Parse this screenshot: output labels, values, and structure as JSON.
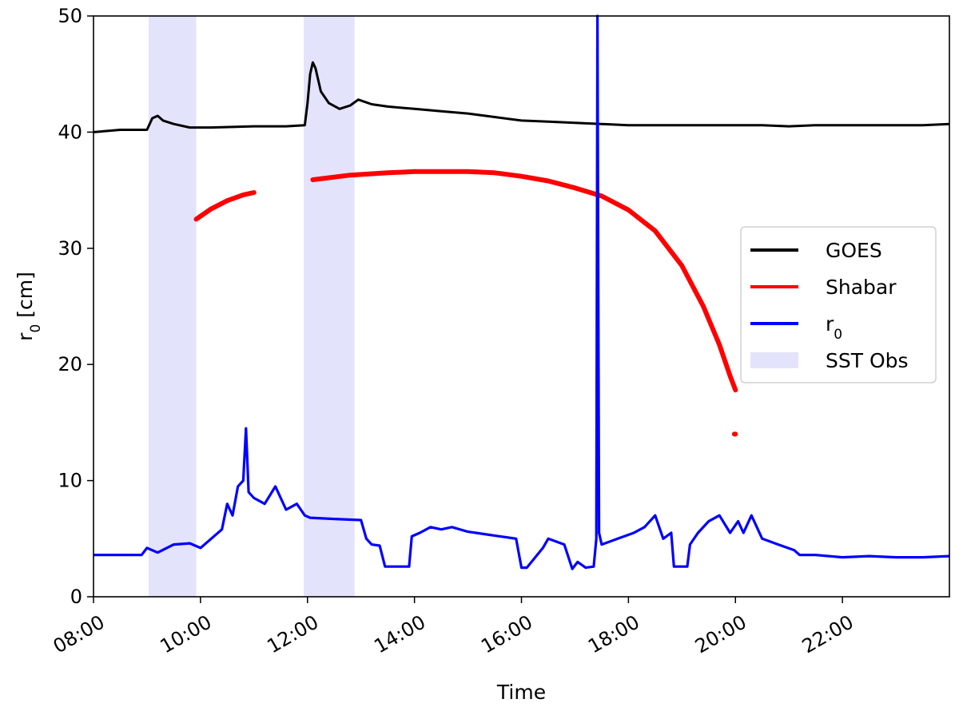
{
  "chart_data": {
    "type": "line",
    "xlabel": "Time",
    "ylabel": "r",
    "ylabel_sub": "0",
    "ylabel_unit": " [cm]",
    "xlim": [
      8.0,
      24.0
    ],
    "ylim": [
      0,
      50
    ],
    "xticks": [
      {
        "value": 8,
        "label": "08:00"
      },
      {
        "value": 10,
        "label": "10:00"
      },
      {
        "value": 12,
        "label": "12:00"
      },
      {
        "value": 14,
        "label": "14:00"
      },
      {
        "value": 16,
        "label": "16:00"
      },
      {
        "value": 18,
        "label": "18:00"
      },
      {
        "value": 20,
        "label": "20:00"
      },
      {
        "value": 22,
        "label": "22:00"
      }
    ],
    "yticks": [
      0,
      10,
      20,
      30,
      40,
      50
    ],
    "grid": false,
    "legend": {
      "position": "center-right",
      "entries": [
        {
          "label": "GOES",
          "sub": "",
          "color": "#000000",
          "type": "line"
        },
        {
          "label": "Shabar",
          "sub": "",
          "color": "#ff0000",
          "type": "line"
        },
        {
          "label": "r",
          "sub": "0",
          "color": "#0000ff",
          "type": "line"
        },
        {
          "label": "SST Obs",
          "sub": "",
          "color": "#e3e3fb",
          "type": "patch"
        }
      ]
    },
    "shaded_regions": [
      {
        "name": "SST Obs",
        "x": [
          9.03,
          9.92
        ],
        "color": "#e3e3fb"
      },
      {
        "name": "SST Obs",
        "x": [
          11.93,
          12.88
        ],
        "color": "#e3e3fb"
      }
    ],
    "series": [
      {
        "name": "GOES",
        "color": "#000000",
        "x": [
          8.0,
          8.5,
          9.0,
          9.1,
          9.2,
          9.3,
          9.5,
          9.8,
          10.2,
          11.0,
          11.6,
          11.95,
          12.0,
          12.05,
          12.1,
          12.15,
          12.25,
          12.4,
          12.6,
          12.8,
          12.95,
          13.2,
          13.5,
          14.0,
          14.5,
          15.0,
          15.5,
          16.0,
          16.5,
          17.0,
          17.5,
          18.0,
          18.5,
          19.0,
          19.5,
          20.0,
          20.5,
          21.0,
          21.5,
          22.0,
          22.5,
          23.0,
          23.5,
          24.0
        ],
        "y": [
          40.0,
          40.2,
          40.2,
          41.2,
          41.4,
          41.0,
          40.7,
          40.4,
          40.4,
          40.5,
          40.5,
          40.6,
          42.5,
          45.0,
          46.0,
          45.5,
          43.5,
          42.5,
          42.0,
          42.3,
          42.8,
          42.4,
          42.2,
          42.0,
          41.8,
          41.6,
          41.3,
          41.0,
          40.9,
          40.8,
          40.7,
          40.6,
          40.6,
          40.6,
          40.6,
          40.6,
          40.6,
          40.5,
          40.6,
          40.6,
          40.6,
          40.6,
          40.6,
          40.7
        ]
      },
      {
        "name": "Shabar",
        "color": "#ff0000",
        "segments": [
          {
            "x": [
              9.92,
              10.2,
              10.5,
              10.8,
              11.0
            ],
            "y": [
              32.5,
              33.4,
              34.1,
              34.6,
              34.8
            ]
          },
          {
            "x": [
              12.1,
              12.8,
              13.5,
              14.0,
              14.5,
              15.0,
              15.5,
              16.0,
              16.5,
              17.0,
              17.5,
              18.0,
              18.5,
              19.0,
              19.4,
              19.7,
              19.9,
              20.0
            ],
            "y": [
              35.9,
              36.3,
              36.5,
              36.6,
              36.6,
              36.6,
              36.5,
              36.2,
              35.8,
              35.2,
              34.5,
              33.3,
              31.5,
              28.5,
              25.0,
              21.7,
              19.0,
              17.8
            ]
          },
          {
            "x": [
              19.98,
              20.0
            ],
            "y": [
              14.0,
              14.0
            ]
          }
        ]
      },
      {
        "name": "r0",
        "color": "#0000ff",
        "x": [
          8.0,
          8.9,
          9.0,
          9.2,
          9.5,
          9.8,
          10.0,
          10.2,
          10.4,
          10.5,
          10.6,
          10.7,
          10.8,
          10.85,
          10.9,
          11.0,
          11.2,
          11.4,
          11.6,
          11.8,
          11.95,
          12.05,
          12.5,
          13.0,
          13.1,
          13.2,
          13.35,
          13.45,
          13.5,
          13.9,
          13.95,
          14.1,
          14.3,
          14.5,
          14.7,
          15.0,
          15.3,
          15.6,
          15.9,
          16.0,
          16.1,
          16.4,
          16.5,
          16.8,
          16.95,
          17.05,
          17.2,
          17.35,
          17.4,
          17.42,
          17.45,
          17.5,
          17.8,
          18.1,
          18.3,
          18.5,
          18.65,
          18.8,
          18.85,
          19.1,
          19.15,
          19.3,
          19.5,
          19.7,
          19.9,
          20.05,
          20.15,
          20.3,
          20.5,
          20.8,
          21.1,
          21.2,
          21.5,
          22.0,
          22.5,
          23.0,
          23.5,
          24.0
        ],
        "y": [
          3.6,
          3.6,
          4.2,
          3.8,
          4.5,
          4.6,
          4.2,
          5.0,
          5.8,
          8.0,
          7.0,
          9.5,
          10.0,
          14.5,
          9.0,
          8.5,
          8.0,
          9.5,
          7.5,
          8.0,
          7.0,
          6.8,
          6.7,
          6.6,
          5.0,
          4.5,
          4.4,
          2.6,
          2.6,
          2.6,
          5.2,
          5.5,
          6.0,
          5.8,
          6.0,
          5.6,
          5.4,
          5.2,
          5.0,
          2.5,
          2.5,
          4.2,
          5.0,
          4.5,
          2.4,
          3.0,
          2.5,
          2.6,
          5.0,
          50.0,
          5.5,
          4.5,
          5.0,
          5.5,
          6.0,
          7.0,
          5.0,
          5.5,
          2.6,
          2.6,
          4.5,
          5.5,
          6.5,
          7.0,
          5.5,
          6.5,
          5.5,
          7.0,
          5.0,
          4.5,
          4.0,
          3.6,
          3.6,
          3.4,
          3.5,
          3.4,
          3.4,
          3.5
        ]
      }
    ]
  }
}
